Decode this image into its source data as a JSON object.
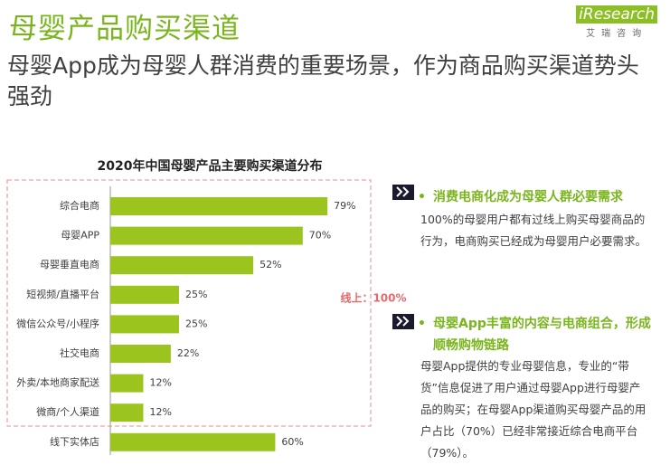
{
  "header": {
    "title": "母婴产品购买渠道",
    "subtitle": "母婴App成为母婴人群消费的重要场景，作为商品购买渠道势头强劲",
    "logo": "iResearch",
    "logo_sub": "艾瑞咨询"
  },
  "chart_data": {
    "type": "hbar",
    "title": "2020年中国母婴产品主要购买渠道分布",
    "categories": [
      "综合电商",
      "母婴APP",
      "母婴垂直电商",
      "短视频/直播平台",
      "微信公众号/小程序",
      "社交电商",
      "外卖/本地商家配送",
      "微商/个人渠道",
      "线下实体店"
    ],
    "values": [
      79,
      70,
      52,
      25,
      25,
      22,
      12,
      12,
      60
    ],
    "value_labels": [
      "79%",
      "70%",
      "52%",
      "25%",
      "25%",
      "22%",
      "12%",
      "12%",
      "60%"
    ],
    "color": "#9cc41f",
    "annotation": "线上：100%"
  },
  "bullets": [
    {
      "heading": "消费电商化成为母婴人群必要需求",
      "body": "100%的母婴用户都有过线上购买母婴商品的行为，电商购买已经成为母婴用户必要需求。"
    },
    {
      "heading": "母婴App丰富的内容与电商组合，形成顺畅购物链路",
      "body": "母婴App提供的专业母婴信息，专业的“带货”信息促进了用户通过母婴App进行母婴产品的购买；在母婴App渠道购买母婴产品的用户占比（70%）已经非常接近综合电商平台（79%）。"
    }
  ]
}
